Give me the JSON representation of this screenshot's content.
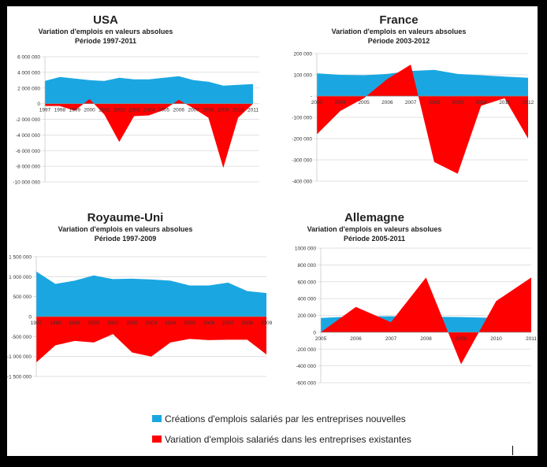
{
  "colors": {
    "created": "#1aa7e1",
    "existing": "#ff0000",
    "text": "#222222"
  },
  "legend": {
    "created_label": "Créations d'emplois salariés par les entreprises nouvelles",
    "existing_label": "Variation d'emplois salariés dans les entreprises existantes"
  },
  "chart_data": [
    {
      "type": "area",
      "title": "USA",
      "subtitle1": "Variation d'emplois en valeurs absolues",
      "subtitle2": "Période 1997-2011",
      "x": [
        "1997",
        "1998",
        "1999",
        "2000",
        "2001",
        "2002",
        "2003",
        "2004",
        "2005",
        "2006",
        "2007",
        "2008",
        "2009",
        "2010",
        "2011"
      ],
      "ylim": [
        -10000000,
        6000000
      ],
      "yticks": [
        6000000,
        4000000,
        2000000,
        0,
        -2000000,
        -4000000,
        -6000000,
        -8000000,
        -10000000
      ],
      "ytick_labels": [
        "6 000 000",
        "4 000 000",
        "2 000 000",
        "0",
        "-2 000 000",
        "-4 000 000",
        "-6 000 000",
        "-8 000 000",
        "-10 000 000"
      ],
      "series": [
        {
          "key": "created",
          "values": [
            2900000,
            3400000,
            3200000,
            3000000,
            2900000,
            3300000,
            3100000,
            3100000,
            3300000,
            3500000,
            3000000,
            2800000,
            2300000,
            2400000,
            2500000
          ]
        },
        {
          "key": "existing",
          "values": [
            -300000,
            -300000,
            -900000,
            600000,
            -1400000,
            -4900000,
            -1600000,
            -1500000,
            -800000,
            500000,
            -600000,
            -1800000,
            -8200000,
            -1800000,
            0
          ]
        }
      ]
    },
    {
      "type": "area",
      "title": "France",
      "subtitle1": "Variation d'emplois en valeurs absolues",
      "subtitle2": "Période 2003-2012",
      "x": [
        "2003",
        "2004",
        "2005",
        "2006",
        "2007",
        "2008",
        "2009",
        "2010",
        "2011",
        "2012"
      ],
      "ylim": [
        -400000,
        200000
      ],
      "yticks": [
        200000,
        100000,
        0,
        -100000,
        -200000,
        -300000,
        -400000
      ],
      "ytick_labels": [
        "200 000",
        "100 000",
        "-",
        "-100 000",
        "-200 000",
        "-300 000",
        "-400 000"
      ],
      "series": [
        {
          "key": "created",
          "values": [
            107000,
            100000,
            98000,
            104000,
            118000,
            123000,
            104000,
            98000,
            92000,
            86000
          ]
        },
        {
          "key": "existing",
          "values": [
            -180000,
            -70000,
            -10000,
            80000,
            148000,
            -310000,
            -365000,
            -45000,
            -10000,
            -200000
          ]
        }
      ]
    },
    {
      "type": "area",
      "title": "Royaume-Uni",
      "subtitle1": "Variation d'emplois en valeurs absolues",
      "subtitle2": "Période 1997-2009",
      "x": [
        "1997",
        "1998",
        "1999",
        "2000",
        "2001",
        "2002",
        "2003",
        "2004",
        "2005",
        "2006",
        "2007",
        "2008",
        "2009"
      ],
      "ylim": [
        -1500000,
        1500000
      ],
      "yticks": [
        1500000,
        1000000,
        500000,
        0,
        -500000,
        -1000000,
        -1500000
      ],
      "ytick_labels": [
        "1 500 000",
        "1 000 000",
        "500 000",
        "0",
        "-500 000",
        "-1 000 000",
        "-1 500 000"
      ],
      "series": [
        {
          "key": "created",
          "values": [
            1130000,
            820000,
            900000,
            1030000,
            940000,
            950000,
            930000,
            900000,
            780000,
            780000,
            850000,
            640000,
            590000
          ]
        },
        {
          "key": "existing",
          "values": [
            -1150000,
            -720000,
            -610000,
            -650000,
            -440000,
            -900000,
            -1000000,
            -650000,
            -560000,
            -590000,
            -580000,
            -580000,
            -950000
          ]
        }
      ]
    },
    {
      "type": "area",
      "title": "Allemagne",
      "subtitle1": "Variation d'emplois en valeurs absolues",
      "subtitle2": "Période 2005-2011",
      "x": [
        "2005",
        "2006",
        "2007",
        "2008",
        "2009",
        "2010",
        "2011"
      ],
      "ylim": [
        -600000,
        1000000
      ],
      "yticks": [
        1000000,
        800000,
        600000,
        400000,
        200000,
        0,
        -200000,
        -400000,
        -600000
      ],
      "ytick_labels": [
        "1000 000",
        "800 000",
        "600 000",
        "400 000",
        "200 000",
        "0",
        "-200 000",
        "-400 000",
        "-600 000"
      ],
      "series": [
        {
          "key": "created",
          "values": [
            170000,
            190000,
            190000,
            185000,
            180000,
            170000,
            165000
          ]
        },
        {
          "key": "existing",
          "values": [
            0,
            300000,
            120000,
            650000,
            -380000,
            370000,
            650000
          ]
        }
      ]
    }
  ]
}
